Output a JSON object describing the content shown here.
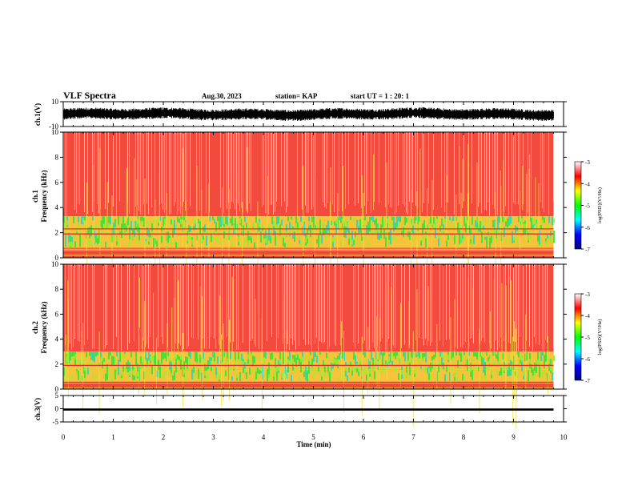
{
  "header": {
    "title": "VLF Spectra",
    "date": "Aug.30, 2023",
    "station": "station= KAP",
    "start": "start  UT =   1 : 20: 1"
  },
  "panels": {
    "ch1_wave": {
      "ylabel": "ch.1(V)",
      "ticks": [
        "10",
        "-10"
      ]
    },
    "ch1_spec": {
      "ylabel": "ch.1\nFrequency  (kHz)",
      "ticks": [
        "0",
        "2",
        "4",
        "6",
        "8",
        "10"
      ]
    },
    "ch2_spec": {
      "ylabel": "ch.2\nFrequency  (kHz)",
      "ticks": [
        "0",
        "2",
        "4",
        "6",
        "8",
        "10"
      ]
    },
    "ch3_wave": {
      "ylabel": "ch.3(V)",
      "ticks": [
        "5",
        "0",
        "-5"
      ]
    },
    "colorbar": {
      "label": "log(PSD)(V²/Hz)",
      "ticks": [
        "-3",
        "-4",
        "-5",
        "-6",
        "-7"
      ]
    }
  },
  "xaxis": {
    "label": "Time  (min)",
    "ticks": [
      "0",
      "1",
      "2",
      "3",
      "4",
      "5",
      "6",
      "7",
      "8",
      "9",
      "10"
    ]
  },
  "chart_data": [
    {
      "type": "line",
      "title": "",
      "ylabel": "ch.1(V)",
      "xlabel": "",
      "xlim": [
        0,
        10
      ],
      "ylim": [
        -10,
        10
      ],
      "data_extent_min": 9.8,
      "series": [
        {
          "amplitude_band_v": [
            -4,
            4
          ],
          "color": "#000000"
        }
      ]
    },
    {
      "type": "heatmap",
      "ylabel": "ch.1 Frequency  (kHz)",
      "xlim": [
        0,
        10
      ],
      "ylim": [
        0,
        10
      ],
      "colorscale": {
        "range": [
          -7,
          -3
        ],
        "stops": [
          "#000080",
          "#0000ff",
          "#00ffff",
          "#00ff00",
          "#ffff00",
          "#ff0000",
          "#ffffff"
        ]
      },
      "bands_khz": [
        {
          "from": 0,
          "to": 0.8,
          "level": "red/yellow lines"
        },
        {
          "from": 0.8,
          "to": 3.3,
          "level": "green/yellow (~-5)"
        },
        {
          "from": 3.3,
          "to": 10,
          "level": "red/white (~-3.5)"
        }
      ],
      "lines_khz": [
        2.3,
        1.9,
        0.5
      ]
    },
    {
      "type": "heatmap",
      "ylabel": "ch.2 Frequency  (kHz)",
      "xlim": [
        0,
        10
      ],
      "ylim": [
        0,
        10
      ],
      "bands_khz": [
        {
          "from": 0,
          "to": 0.6,
          "level": "red/yellow lines"
        },
        {
          "from": 0.6,
          "to": 3.0,
          "level": "green/yellow (~-5)"
        },
        {
          "from": 3.0,
          "to": 10,
          "level": "red/white (~-3.5)"
        }
      ],
      "lines_khz": [
        1.9,
        0.4
      ]
    },
    {
      "type": "line",
      "ylabel": "ch.3(V)",
      "xlabel": "Time  (min)",
      "xlim": [
        0,
        10
      ],
      "ylim": [
        -5,
        5
      ],
      "series": [
        {
          "value_v": -0.3,
          "band_v": [
            -0.7,
            0.1
          ],
          "color": "#000000"
        }
      ]
    }
  ]
}
